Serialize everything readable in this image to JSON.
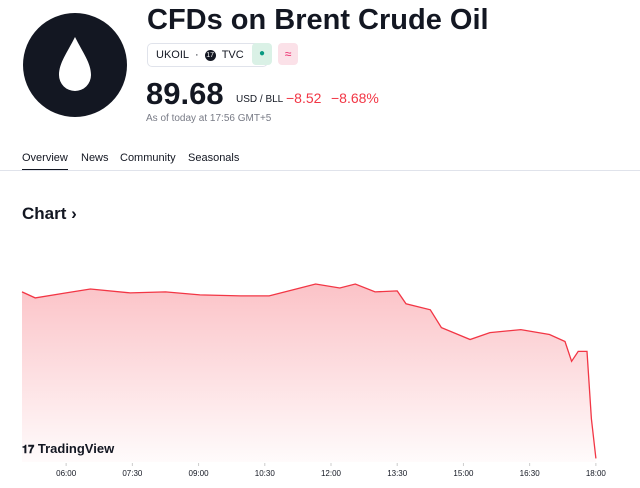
{
  "header": {
    "title": "CFDs on Brent Crude Oil",
    "symbol": "UKOIL",
    "exchange": "TVC",
    "price": "89.68",
    "unit": "USD / BLL",
    "change": "−8.52",
    "change_percent": "−8.68%",
    "timestamp": "As of today at 17:56 GMT+5"
  },
  "tabs": [
    "Overview",
    "News",
    "Community",
    "Seasonals"
  ],
  "section_title": "Chart",
  "brand": "TradingView",
  "chart": {
    "type": "line",
    "x": [
      5.0,
      5.3,
      6.0,
      6.55,
      7.45,
      8.25,
      9.03,
      9.95,
      10.6,
      11.3,
      11.65,
      12.2,
      12.55,
      13.0,
      13.5,
      13.7,
      14.25,
      14.5,
      15.15,
      15.6,
      16.3,
      16.95,
      17.3,
      17.45,
      17.6,
      17.8,
      17.9,
      18.0
    ],
    "series": [
      {
        "color": "#f23645",
        "values": [
          98.08,
          97.78,
          98.03,
          98.23,
          98.03,
          98.08,
          97.93,
          97.88,
          97.88,
          98.28,
          98.48,
          98.28,
          98.48,
          98.08,
          98.13,
          97.48,
          97.18,
          96.28,
          95.68,
          96.03,
          96.18,
          95.93,
          95.58,
          94.58,
          95.08,
          95.08,
          91.68,
          89.68
        ]
      }
    ],
    "xlim": [
      5,
      19
    ],
    "ylim": [
      89.5,
      100.7
    ],
    "xticks": [
      {
        "value": 6,
        "label": "06:00"
      },
      {
        "value": 7.5,
        "label": "07:30"
      },
      {
        "value": 9,
        "label": "09:00"
      },
      {
        "value": 10.5,
        "label": "10:30"
      },
      {
        "value": 12,
        "label": "12:00"
      },
      {
        "value": 13.5,
        "label": "13:30"
      },
      {
        "value": 15,
        "label": "15:00"
      },
      {
        "value": 16.5,
        "label": "16:30"
      },
      {
        "value": 18,
        "label": "18:00"
      }
    ]
  }
}
